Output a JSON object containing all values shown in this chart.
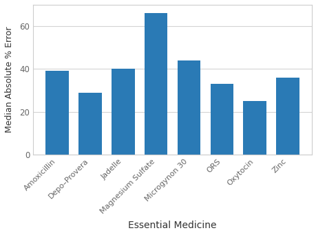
{
  "categories": [
    "Amoxicillin",
    "Depo–Provera",
    "Jadelle",
    "Magnesium Sulfate",
    "Microgynon 30",
    "ORS",
    "Oxytocin",
    "Zinc"
  ],
  "values": [
    39,
    29,
    40,
    66,
    44,
    33,
    25,
    36
  ],
  "bar_color": "#2a7ab5",
  "xlabel": "Essential Medicine",
  "ylabel": "Median Absolute % Error",
  "ylim": [
    0,
    70
  ],
  "yticks": [
    0,
    20,
    40,
    60
  ],
  "background_color": "#ffffff",
  "panel_background": "#ffffff",
  "grid_color": "#d3d3d3",
  "spine_color": "#cccccc",
  "tick_label_color": "#666666",
  "axis_label_color": "#333333"
}
